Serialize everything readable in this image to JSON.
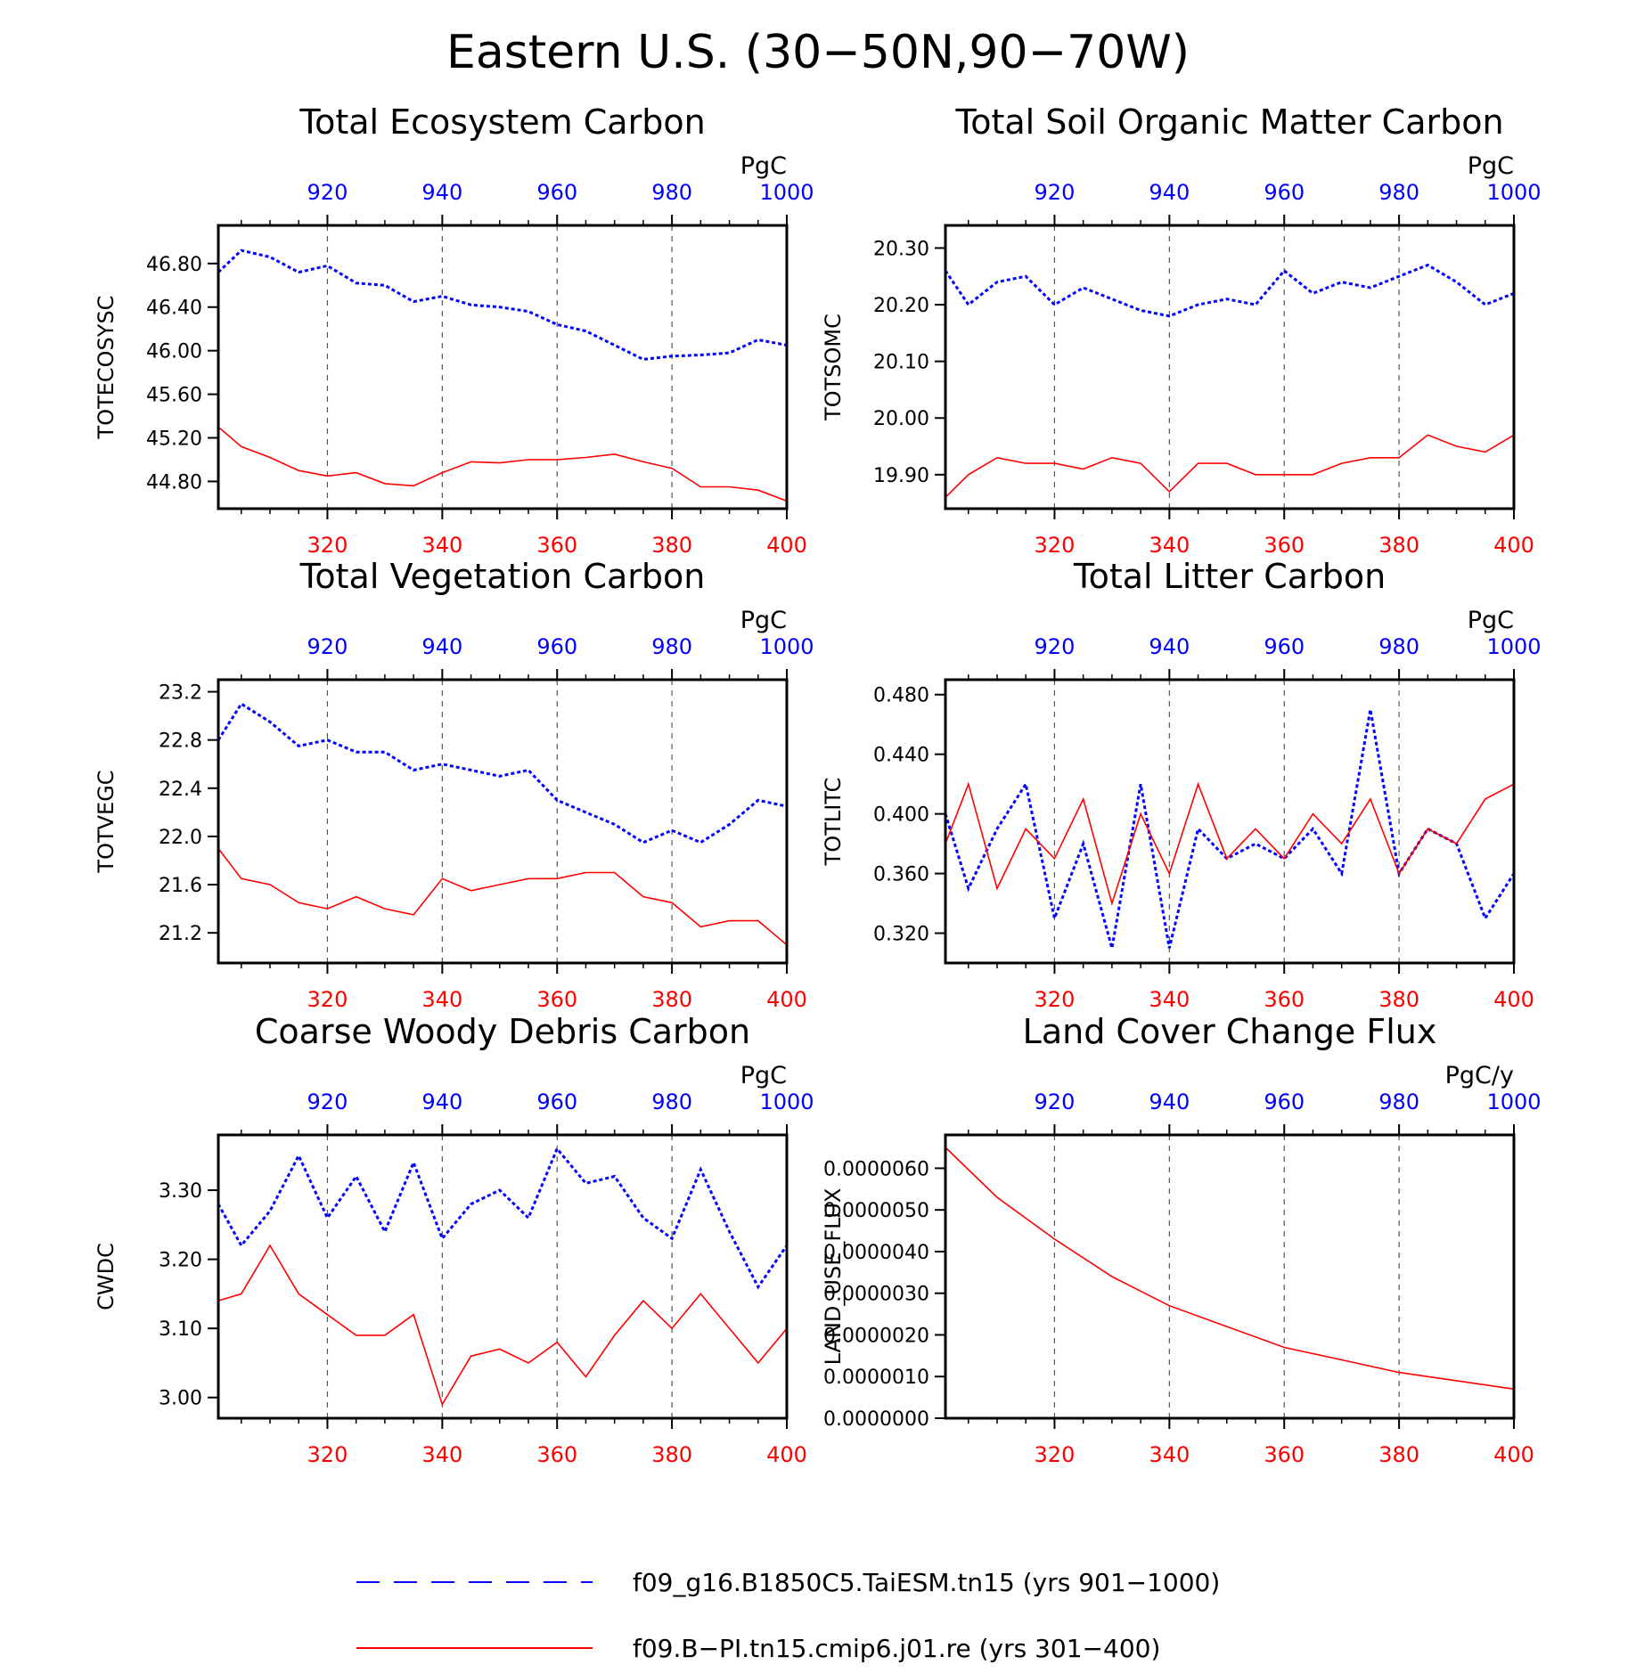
{
  "figure": {
    "title": "Eastern U.S. (30−50N,90−70W)",
    "colors": {
      "case1": "#0000ff",
      "case2": "#ff0000",
      "frame": "#000000"
    }
  },
  "legend": {
    "entries": [
      {
        "label": "f09_g16.B1850C5.TaiESM.tn15 (yrs 901−1000)",
        "color": "#0000ff",
        "style": "dashed"
      },
      {
        "label": "f09.B−PI.tn15.cmip6.j01.re (yrs 301−400)",
        "color": "#ff0000",
        "style": "solid"
      }
    ]
  },
  "chart_data": [
    {
      "type": "line",
      "title": "Total Ecosystem Carbon",
      "ylabel": "TOTECOSYSC",
      "units": "PgC",
      "ylim": [
        44.55,
        47.15
      ],
      "yticks": [
        44.8,
        45.2,
        45.6,
        46.0,
        46.4,
        46.8
      ],
      "ytick_labels": [
        "44.80",
        "45.20",
        "45.60",
        "46.00",
        "46.40",
        "46.80"
      ],
      "x_bottom": {
        "range": [
          301,
          400
        ],
        "ticks": [
          320,
          340,
          360,
          380,
          400
        ]
      },
      "x_top": {
        "range": [
          901,
          1000
        ],
        "ticks": [
          920,
          940,
          960,
          980,
          1000
        ]
      },
      "series": [
        {
          "name": "f09_g16.B1850C5.TaiESM.tn15 (yrs 901−1000)",
          "axis": "top",
          "color": "#0000ff",
          "dash": true,
          "x": [
            901,
            905,
            910,
            915,
            920,
            925,
            930,
            935,
            940,
            945,
            950,
            955,
            960,
            965,
            970,
            975,
            980,
            985,
            990,
            995,
            1000
          ],
          "y": [
            46.72,
            46.92,
            46.86,
            46.72,
            46.78,
            46.62,
            46.6,
            46.45,
            46.5,
            46.42,
            46.4,
            46.36,
            46.24,
            46.18,
            46.05,
            45.92,
            45.95,
            45.96,
            45.98,
            46.1,
            46.05
          ]
        },
        {
          "name": "f09.B−PI.tn15.cmip6.j01.re (yrs 301−400)",
          "axis": "bottom",
          "color": "#ff0000",
          "dash": false,
          "x": [
            301,
            305,
            310,
            315,
            320,
            325,
            330,
            335,
            340,
            345,
            350,
            355,
            360,
            365,
            370,
            375,
            380,
            385,
            390,
            395,
            400
          ],
          "y": [
            45.3,
            45.12,
            45.02,
            44.9,
            44.85,
            44.88,
            44.78,
            44.76,
            44.88,
            44.98,
            44.97,
            45.0,
            45.0,
            45.02,
            45.05,
            44.98,
            44.92,
            44.75,
            44.75,
            44.72,
            44.62
          ]
        }
      ]
    },
    {
      "type": "line",
      "title": "Total Soil Organic Matter Carbon",
      "ylabel": "TOTSOMC",
      "units": "PgC",
      "ylim": [
        19.84,
        20.34
      ],
      "yticks": [
        19.9,
        20.0,
        20.1,
        20.2,
        20.3
      ],
      "ytick_labels": [
        "19.90",
        "20.00",
        "20.10",
        "20.20",
        "20.30"
      ],
      "x_bottom": {
        "range": [
          301,
          400
        ],
        "ticks": [
          320,
          340,
          360,
          380,
          400
        ]
      },
      "x_top": {
        "range": [
          901,
          1000
        ],
        "ticks": [
          920,
          940,
          960,
          980,
          1000
        ]
      },
      "series": [
        {
          "name": "f09_g16.B1850C5.TaiESM.tn15 (yrs 901−1000)",
          "axis": "top",
          "color": "#0000ff",
          "dash": true,
          "x": [
            901,
            905,
            910,
            915,
            920,
            925,
            930,
            935,
            940,
            945,
            950,
            955,
            960,
            965,
            970,
            975,
            980,
            985,
            990,
            995,
            1000
          ],
          "y": [
            20.26,
            20.2,
            20.24,
            20.25,
            20.2,
            20.23,
            20.21,
            20.19,
            20.18,
            20.2,
            20.21,
            20.2,
            20.26,
            20.22,
            20.24,
            20.23,
            20.25,
            20.27,
            20.24,
            20.2,
            20.22
          ]
        },
        {
          "name": "f09.B−PI.tn15.cmip6.j01.re (yrs 301−400)",
          "axis": "bottom",
          "color": "#ff0000",
          "dash": false,
          "x": [
            301,
            305,
            310,
            315,
            320,
            325,
            330,
            335,
            340,
            345,
            350,
            355,
            360,
            365,
            370,
            375,
            380,
            385,
            390,
            395,
            400
          ],
          "y": [
            19.86,
            19.9,
            19.93,
            19.92,
            19.92,
            19.91,
            19.93,
            19.92,
            19.87,
            19.92,
            19.92,
            19.9,
            19.9,
            19.9,
            19.92,
            19.93,
            19.93,
            19.97,
            19.95,
            19.94,
            19.97
          ]
        }
      ]
    },
    {
      "type": "line",
      "title": "Total Vegetation Carbon",
      "ylabel": "TOTVEGC",
      "units": "PgC",
      "ylim": [
        20.95,
        23.3
      ],
      "yticks": [
        21.2,
        21.6,
        22.0,
        22.4,
        22.8,
        23.2
      ],
      "ytick_labels": [
        "21.2",
        "21.6",
        "22.0",
        "22.4",
        "22.8",
        "23.2"
      ],
      "x_bottom": {
        "range": [
          301,
          400
        ],
        "ticks": [
          320,
          340,
          360,
          380,
          400
        ]
      },
      "x_top": {
        "range": [
          901,
          1000
        ],
        "ticks": [
          920,
          940,
          960,
          980,
          1000
        ]
      },
      "series": [
        {
          "name": "f09_g16.B1850C5.TaiESM.tn15 (yrs 901−1000)",
          "axis": "top",
          "color": "#0000ff",
          "dash": true,
          "x": [
            901,
            905,
            910,
            915,
            920,
            925,
            930,
            935,
            940,
            945,
            950,
            955,
            960,
            965,
            970,
            975,
            980,
            985,
            990,
            995,
            1000
          ],
          "y": [
            22.8,
            23.1,
            22.95,
            22.75,
            22.8,
            22.7,
            22.7,
            22.55,
            22.6,
            22.55,
            22.5,
            22.55,
            22.3,
            22.2,
            22.1,
            21.95,
            22.05,
            21.95,
            22.1,
            22.3,
            22.25
          ]
        },
        {
          "name": "f09.B−PI.tn15.cmip6.j01.re (yrs 301−400)",
          "axis": "bottom",
          "color": "#ff0000",
          "dash": false,
          "x": [
            301,
            305,
            310,
            315,
            320,
            325,
            330,
            335,
            340,
            345,
            350,
            355,
            360,
            365,
            370,
            375,
            380,
            385,
            390,
            395,
            400
          ],
          "y": [
            21.9,
            21.65,
            21.6,
            21.45,
            21.4,
            21.5,
            21.4,
            21.35,
            21.65,
            21.55,
            21.6,
            21.65,
            21.65,
            21.7,
            21.7,
            21.5,
            21.45,
            21.25,
            21.3,
            21.3,
            21.1
          ]
        }
      ]
    },
    {
      "type": "line",
      "title": "Total Litter Carbon",
      "ylabel": "TOTLITC",
      "units": "PgC",
      "ylim": [
        0.3,
        0.49
      ],
      "yticks": [
        0.32,
        0.36,
        0.4,
        0.44,
        0.48
      ],
      "ytick_labels": [
        "0.320",
        "0.360",
        "0.400",
        "0.440",
        "0.480"
      ],
      "x_bottom": {
        "range": [
          301,
          400
        ],
        "ticks": [
          320,
          340,
          360,
          380,
          400
        ]
      },
      "x_top": {
        "range": [
          901,
          1000
        ],
        "ticks": [
          920,
          940,
          960,
          980,
          1000
        ]
      },
      "series": [
        {
          "name": "f09_g16.B1850C5.TaiESM.tn15 (yrs 901−1000)",
          "axis": "top",
          "color": "#0000ff",
          "dash": true,
          "x": [
            901,
            905,
            910,
            915,
            920,
            925,
            930,
            935,
            940,
            945,
            950,
            955,
            960,
            965,
            970,
            975,
            980,
            985,
            990,
            995,
            1000
          ],
          "y": [
            0.4,
            0.35,
            0.39,
            0.42,
            0.33,
            0.38,
            0.31,
            0.42,
            0.31,
            0.39,
            0.37,
            0.38,
            0.37,
            0.39,
            0.36,
            0.47,
            0.36,
            0.39,
            0.38,
            0.33,
            0.36
          ]
        },
        {
          "name": "f09.B−PI.tn15.cmip6.j01.re (yrs 301−400)",
          "axis": "bottom",
          "color": "#ff0000",
          "dash": false,
          "x": [
            301,
            305,
            310,
            315,
            320,
            325,
            330,
            335,
            340,
            345,
            350,
            355,
            360,
            365,
            370,
            375,
            380,
            385,
            390,
            395,
            400
          ],
          "y": [
            0.38,
            0.42,
            0.35,
            0.39,
            0.37,
            0.41,
            0.34,
            0.4,
            0.36,
            0.42,
            0.37,
            0.39,
            0.37,
            0.4,
            0.38,
            0.41,
            0.36,
            0.39,
            0.38,
            0.41,
            0.42
          ]
        }
      ]
    },
    {
      "type": "line",
      "title": "Coarse Woody Debris Carbon",
      "ylabel": "CWDC",
      "units": "PgC",
      "ylim": [
        2.97,
        3.38
      ],
      "yticks": [
        3.0,
        3.1,
        3.2,
        3.3
      ],
      "ytick_labels": [
        "3.00",
        "3.10",
        "3.20",
        "3.30"
      ],
      "x_bottom": {
        "range": [
          301,
          400
        ],
        "ticks": [
          320,
          340,
          360,
          380,
          400
        ]
      },
      "x_top": {
        "range": [
          901,
          1000
        ],
        "ticks": [
          920,
          940,
          960,
          980,
          1000
        ]
      },
      "series": [
        {
          "name": "f09_g16.B1850C5.TaiESM.tn15 (yrs 901−1000)",
          "axis": "top",
          "color": "#0000ff",
          "dash": true,
          "x": [
            901,
            905,
            910,
            915,
            920,
            925,
            930,
            935,
            940,
            945,
            950,
            955,
            960,
            965,
            970,
            975,
            980,
            985,
            990,
            995,
            1000
          ],
          "y": [
            3.28,
            3.22,
            3.27,
            3.35,
            3.26,
            3.32,
            3.24,
            3.34,
            3.23,
            3.28,
            3.3,
            3.26,
            3.36,
            3.31,
            3.32,
            3.26,
            3.23,
            3.33,
            3.24,
            3.16,
            3.22
          ]
        },
        {
          "name": "f09.B−PI.tn15.cmip6.j01.re (yrs 301−400)",
          "axis": "bottom",
          "color": "#ff0000",
          "dash": false,
          "x": [
            301,
            305,
            310,
            315,
            320,
            325,
            330,
            335,
            340,
            345,
            350,
            355,
            360,
            365,
            370,
            375,
            380,
            385,
            390,
            395,
            400
          ],
          "y": [
            3.14,
            3.15,
            3.22,
            3.15,
            3.12,
            3.09,
            3.09,
            3.12,
            2.99,
            3.06,
            3.07,
            3.05,
            3.08,
            3.03,
            3.09,
            3.14,
            3.1,
            3.15,
            3.1,
            3.05,
            3.1
          ]
        }
      ]
    },
    {
      "type": "line",
      "title": "Land Cover Change Flux",
      "ylabel": "LAND_USE_FLUX",
      "units": "PgC/y",
      "ylim": [
        0.0,
        6.8e-06
      ],
      "yticks": [
        0.0,
        1e-06,
        2e-06,
        3e-06,
        4e-06,
        5e-06,
        6e-06
      ],
      "ytick_labels": [
        "0.0000000",
        "0.0000010",
        "0.0000020",
        "0.0000030",
        "0.0000040",
        "0.0000050",
        "0.0000060"
      ],
      "x_bottom": {
        "range": [
          301,
          400
        ],
        "ticks": [
          320,
          340,
          360,
          380,
          400
        ]
      },
      "x_top": {
        "range": [
          901,
          1000
        ],
        "ticks": [
          920,
          940,
          960,
          980,
          1000
        ]
      },
      "series": [
        {
          "name": "f09.B−PI.tn15.cmip6.j01.re (yrs 301−400)",
          "axis": "bottom",
          "color": "#ff0000",
          "dash": false,
          "x": [
            301,
            310,
            320,
            330,
            340,
            350,
            360,
            370,
            380,
            390,
            400
          ],
          "y": [
            6.5e-06,
            5.3e-06,
            4.3e-06,
            3.4e-06,
            2.7e-06,
            2.2e-06,
            1.7e-06,
            1.4e-06,
            1.1e-06,
            9e-07,
            7e-07
          ]
        }
      ]
    }
  ]
}
